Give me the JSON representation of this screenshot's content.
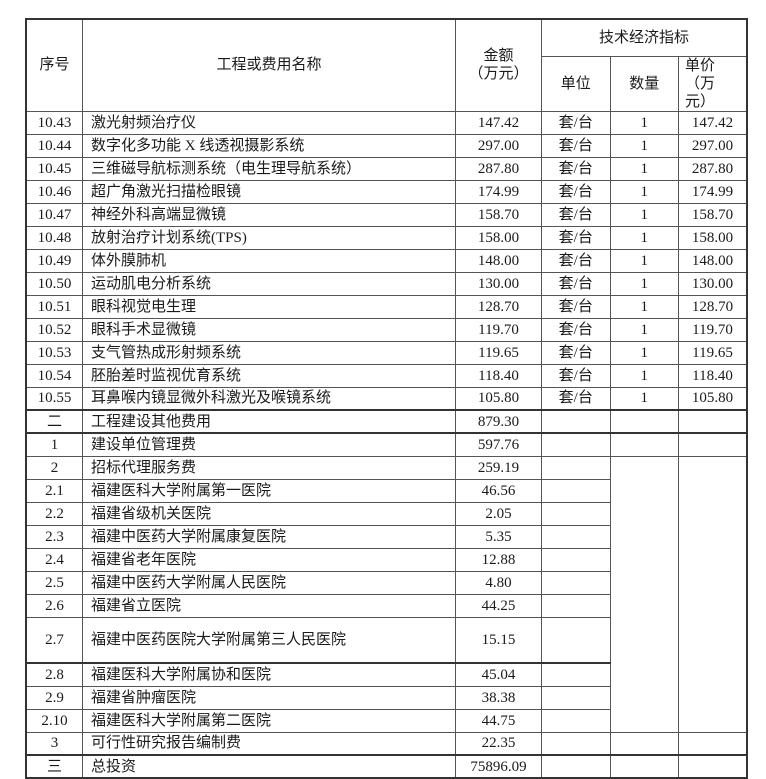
{
  "header": {
    "no": "序号",
    "name": "工程或费用名称",
    "amount_line1": "金额",
    "amount_line2": "（万元）",
    "tech_group": "技术经济指标",
    "unit": "单位",
    "qty": "数量",
    "price_line1": "单价 （万",
    "price_line2": "元）"
  },
  "rows": [
    {
      "no": "10.43",
      "name": "激光射频治疗仪",
      "amount": "147.42",
      "unit": "套/台",
      "qty": "1",
      "price": "147.42"
    },
    {
      "no": "10.44",
      "name": "数字化多功能 X 线透视摄影系统",
      "amount": "297.00",
      "unit": "套/台",
      "qty": "1",
      "price": "297.00"
    },
    {
      "no": "10.45",
      "name": "三维磁导航标测系统（电生理导航系统）",
      "amount": "287.80",
      "unit": "套/台",
      "qty": "1",
      "price": "287.80"
    },
    {
      "no": "10.46",
      "name": "超广角激光扫描检眼镜",
      "amount": "174.99",
      "unit": "套/台",
      "qty": "1",
      "price": "174.99"
    },
    {
      "no": "10.47",
      "name": "神经外科高端显微镜",
      "amount": "158.70",
      "unit": "套/台",
      "qty": "1",
      "price": "158.70"
    },
    {
      "no": "10.48",
      "name": "放射治疗计划系统(TPS)",
      "amount": "158.00",
      "unit": "套/台",
      "qty": "1",
      "price": "158.00"
    },
    {
      "no": "10.49",
      "name": "体外膜肺机",
      "amount": "148.00",
      "unit": "套/台",
      "qty": "1",
      "price": "148.00"
    },
    {
      "no": "10.50",
      "name": "运动肌电分析系统",
      "amount": "130.00",
      "unit": "套/台",
      "qty": "1",
      "price": "130.00"
    },
    {
      "no": "10.51",
      "name": "眼科视觉电生理",
      "amount": "128.70",
      "unit": "套/台",
      "qty": "1",
      "price": "128.70"
    },
    {
      "no": "10.52",
      "name": "眼科手术显微镜",
      "amount": "119.70",
      "unit": "套/台",
      "qty": "1",
      "price": "119.70"
    },
    {
      "no": "10.53",
      "name": "支气管热成形射频系统",
      "amount": "119.65",
      "unit": "套/台",
      "qty": "1",
      "price": "119.65"
    },
    {
      "no": "10.54",
      "name": "胚胎差时监视优育系统",
      "amount": "118.40",
      "unit": "套/台",
      "qty": "1",
      "price": "118.40"
    },
    {
      "no": "10.55",
      "name": "耳鼻喉内镜显微外科激光及喉镜系统",
      "amount": "105.80",
      "unit": "套/台",
      "qty": "1",
      "price": "105.80"
    },
    {
      "no": "二",
      "name": "工程建设其他费用",
      "amount": "879.30",
      "unit": "",
      "qty": "",
      "price": ""
    },
    {
      "no": "1",
      "name": "建设单位管理费",
      "amount": "597.76",
      "unit": "",
      "qty": "",
      "price": ""
    },
    {
      "no": "2",
      "name": "招标代理服务费",
      "amount": "259.19",
      "unit": "",
      "qty": "",
      "price": ""
    },
    {
      "no": "2.1",
      "name": "福建医科大学附属第一医院",
      "amount": "46.56",
      "unit": ""
    },
    {
      "no": "2.2",
      "name": "福建省级机关医院",
      "amount": "2.05",
      "unit": ""
    },
    {
      "no": "2.3",
      "name": "福建中医药大学附属康复医院",
      "amount": "5.35",
      "unit": ""
    },
    {
      "no": "2.4",
      "name": "福建省老年医院",
      "amount": "12.88",
      "unit": ""
    },
    {
      "no": "2.5",
      "name": "福建中医药大学附属人民医院",
      "amount": "4.80",
      "unit": ""
    },
    {
      "no": "2.6",
      "name": "福建省立医院",
      "amount": "44.25",
      "unit": ""
    },
    {
      "no": "2.7",
      "name": "福建中医药医院大学附属第三人民医院",
      "amount": "15.15",
      "unit": ""
    },
    {
      "no": "2.8",
      "name": "福建医科大学附属协和医院",
      "amount": "45.04",
      "unit": ""
    },
    {
      "no": "2.9",
      "name": "福建省肿瘤医院",
      "amount": "38.38",
      "unit": ""
    },
    {
      "no": "2.10",
      "name": "福建医科大学附属第二医院",
      "amount": "44.75",
      "unit": ""
    },
    {
      "no": "3",
      "name": "可行性研究报告编制费",
      "amount": "22.35",
      "unit": "",
      "qty": "",
      "price": ""
    },
    {
      "no": "三",
      "name": "总投资",
      "amount": "75896.09",
      "unit": "",
      "qty": "",
      "price": ""
    }
  ]
}
